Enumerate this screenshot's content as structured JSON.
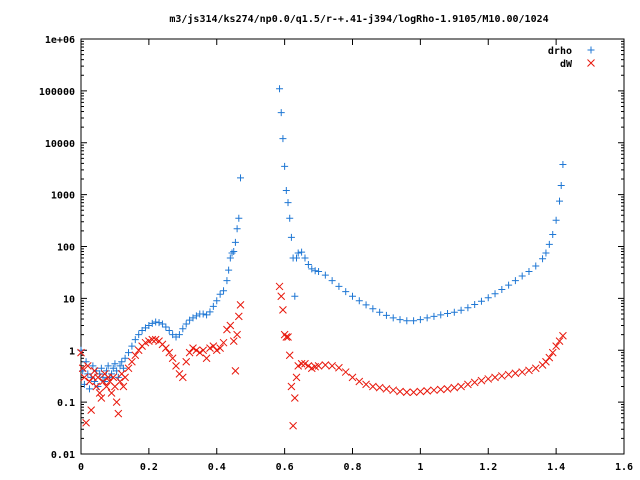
{
  "chart_data": {
    "type": "scatter",
    "title": "m3/js314/ks274/np0.0/q1.5/r-+.41-j394/logRho-1.9105/M10.00/1024",
    "xlabel": "",
    "ylabel": "",
    "xlim": [
      0,
      1.6
    ],
    "ylim": [
      0.01,
      1000000
    ],
    "y_scale": "log",
    "x_ticks": [
      "0",
      "0.2",
      "0.4",
      "0.6",
      "0.8",
      "1",
      "1.2",
      "1.4",
      "1.6"
    ],
    "y_ticks": [
      "0.01",
      "0.1",
      "1",
      "10",
      "100",
      "1000",
      "10000",
      "100000",
      "1e+06"
    ],
    "legend_position": "top-right",
    "grid": false,
    "series": [
      {
        "name": "drho",
        "marker": "plus",
        "color": "#1f77d4",
        "points": [
          [
            0.0,
            1.0
          ],
          [
            0.005,
            0.4
          ],
          [
            0.01,
            0.22
          ],
          [
            0.015,
            0.6
          ],
          [
            0.02,
            0.35
          ],
          [
            0.025,
            0.18
          ],
          [
            0.03,
            0.3
          ],
          [
            0.035,
            0.5
          ],
          [
            0.04,
            0.25
          ],
          [
            0.045,
            0.4
          ],
          [
            0.05,
            0.2
          ],
          [
            0.055,
            0.35
          ],
          [
            0.06,
            0.45
          ],
          [
            0.065,
            0.3
          ],
          [
            0.07,
            0.25
          ],
          [
            0.075,
            0.4
          ],
          [
            0.08,
            0.5
          ],
          [
            0.085,
            0.3
          ],
          [
            0.09,
            0.35
          ],
          [
            0.095,
            0.45
          ],
          [
            0.1,
            0.55
          ],
          [
            0.105,
            0.4
          ],
          [
            0.11,
            0.3
          ],
          [
            0.115,
            0.5
          ],
          [
            0.12,
            0.6
          ],
          [
            0.125,
            0.45
          ],
          [
            0.13,
            0.7
          ],
          [
            0.14,
            0.9
          ],
          [
            0.15,
            1.2
          ],
          [
            0.16,
            1.6
          ],
          [
            0.17,
            2.0
          ],
          [
            0.18,
            2.4
          ],
          [
            0.19,
            2.7
          ],
          [
            0.2,
            3.0
          ],
          [
            0.21,
            3.3
          ],
          [
            0.22,
            3.5
          ],
          [
            0.23,
            3.4
          ],
          [
            0.24,
            3.2
          ],
          [
            0.25,
            2.8
          ],
          [
            0.26,
            2.4
          ],
          [
            0.27,
            2.0
          ],
          [
            0.28,
            1.8
          ],
          [
            0.29,
            2.0
          ],
          [
            0.3,
            2.6
          ],
          [
            0.31,
            3.2
          ],
          [
            0.32,
            3.8
          ],
          [
            0.33,
            4.2
          ],
          [
            0.34,
            4.6
          ],
          [
            0.35,
            5.0
          ],
          [
            0.36,
            5.0
          ],
          [
            0.37,
            4.8
          ],
          [
            0.38,
            5.5
          ],
          [
            0.39,
            7.0
          ],
          [
            0.4,
            9.0
          ],
          [
            0.41,
            12.0
          ],
          [
            0.42,
            14.0
          ],
          [
            0.43,
            22.0
          ],
          [
            0.435,
            35.0
          ],
          [
            0.44,
            60.0
          ],
          [
            0.445,
            75.0
          ],
          [
            0.45,
            80.0
          ],
          [
            0.455,
            120.0
          ],
          [
            0.46,
            220.0
          ],
          [
            0.465,
            350.0
          ],
          [
            0.47,
            2100.0
          ],
          [
            0.585,
            110000.0
          ],
          [
            0.59,
            38000.0
          ],
          [
            0.595,
            12000.0
          ],
          [
            0.6,
            3500.0
          ],
          [
            0.605,
            1200.0
          ],
          [
            0.61,
            700.0
          ],
          [
            0.615,
            350.0
          ],
          [
            0.62,
            150.0
          ],
          [
            0.625,
            60.0
          ],
          [
            0.63,
            11.0
          ],
          [
            0.635,
            60.0
          ],
          [
            0.64,
            75.0
          ],
          [
            0.65,
            78.0
          ],
          [
            0.66,
            60.0
          ],
          [
            0.67,
            45.0
          ],
          [
            0.68,
            37.0
          ],
          [
            0.69,
            34.0
          ],
          [
            0.7,
            33.0
          ],
          [
            0.72,
            28.0
          ],
          [
            0.74,
            22.0
          ],
          [
            0.76,
            17.0
          ],
          [
            0.78,
            13.5
          ],
          [
            0.8,
            11.0
          ],
          [
            0.82,
            9.0
          ],
          [
            0.84,
            7.5
          ],
          [
            0.86,
            6.3
          ],
          [
            0.88,
            5.4
          ],
          [
            0.9,
            4.7
          ],
          [
            0.92,
            4.2
          ],
          [
            0.94,
            3.9
          ],
          [
            0.96,
            3.7
          ],
          [
            0.98,
            3.7
          ],
          [
            1.0,
            3.9
          ],
          [
            1.02,
            4.2
          ],
          [
            1.04,
            4.5
          ],
          [
            1.06,
            4.8
          ],
          [
            1.08,
            5.1
          ],
          [
            1.1,
            5.4
          ],
          [
            1.12,
            5.9
          ],
          [
            1.14,
            6.6
          ],
          [
            1.16,
            7.6
          ],
          [
            1.18,
            8.8
          ],
          [
            1.2,
            10.3
          ],
          [
            1.22,
            12.3
          ],
          [
            1.24,
            14.8
          ],
          [
            1.26,
            18.0
          ],
          [
            1.28,
            22.0
          ],
          [
            1.3,
            27.0
          ],
          [
            1.32,
            33.0
          ],
          [
            1.34,
            42.0
          ],
          [
            1.36,
            58.0
          ],
          [
            1.37,
            75.0
          ],
          [
            1.38,
            110.0
          ],
          [
            1.39,
            170.0
          ],
          [
            1.4,
            320.0
          ],
          [
            1.41,
            750.0
          ],
          [
            1.415,
            1500.0
          ],
          [
            1.42,
            3800.0
          ]
        ]
      },
      {
        "name": "dW",
        "marker": "cross",
        "color": "#e8180c",
        "points": [
          [
            0.0,
            0.9
          ],
          [
            0.005,
            0.45
          ],
          [
            0.01,
            0.3
          ],
          [
            0.015,
            0.04
          ],
          [
            0.02,
            0.5
          ],
          [
            0.025,
            0.25
          ],
          [
            0.03,
            0.07
          ],
          [
            0.035,
            0.3
          ],
          [
            0.04,
            0.4
          ],
          [
            0.045,
            0.2
          ],
          [
            0.05,
            0.3
          ],
          [
            0.055,
            0.15
          ],
          [
            0.06,
            0.12
          ],
          [
            0.065,
            0.25
          ],
          [
            0.07,
            0.35
          ],
          [
            0.075,
            0.2
          ],
          [
            0.08,
            0.3
          ],
          [
            0.085,
            0.25
          ],
          [
            0.09,
            0.15
          ],
          [
            0.095,
            0.3
          ],
          [
            0.1,
            0.2
          ],
          [
            0.105,
            0.1
          ],
          [
            0.11,
            0.06
          ],
          [
            0.115,
            0.25
          ],
          [
            0.12,
            0.35
          ],
          [
            0.125,
            0.2
          ],
          [
            0.13,
            0.3
          ],
          [
            0.14,
            0.45
          ],
          [
            0.15,
            0.6
          ],
          [
            0.16,
            0.8
          ],
          [
            0.17,
            1.0
          ],
          [
            0.18,
            1.2
          ],
          [
            0.19,
            1.4
          ],
          [
            0.2,
            1.5
          ],
          [
            0.21,
            1.6
          ],
          [
            0.22,
            1.6
          ],
          [
            0.23,
            1.5
          ],
          [
            0.24,
            1.3
          ],
          [
            0.25,
            1.1
          ],
          [
            0.26,
            0.9
          ],
          [
            0.27,
            0.7
          ],
          [
            0.28,
            0.5
          ],
          [
            0.29,
            0.35
          ],
          [
            0.3,
            0.3
          ],
          [
            0.31,
            0.6
          ],
          [
            0.32,
            0.9
          ],
          [
            0.33,
            1.1
          ],
          [
            0.34,
            1.0
          ],
          [
            0.35,
            0.9
          ],
          [
            0.36,
            1.0
          ],
          [
            0.37,
            0.7
          ],
          [
            0.38,
            1.1
          ],
          [
            0.39,
            1.2
          ],
          [
            0.4,
            1.0
          ],
          [
            0.41,
            1.1
          ],
          [
            0.42,
            1.4
          ],
          [
            0.43,
            2.5
          ],
          [
            0.44,
            3.0
          ],
          [
            0.45,
            1.5
          ],
          [
            0.455,
            0.4
          ],
          [
            0.46,
            2.0
          ],
          [
            0.465,
            4.5
          ],
          [
            0.47,
            7.5
          ],
          [
            0.585,
            17.0
          ],
          [
            0.59,
            11.0
          ],
          [
            0.595,
            6.0
          ],
          [
            0.6,
            2.0
          ],
          [
            0.605,
            1.8
          ],
          [
            0.61,
            1.8
          ],
          [
            0.615,
            0.8
          ],
          [
            0.62,
            0.2
          ],
          [
            0.625,
            0.035
          ],
          [
            0.63,
            0.12
          ],
          [
            0.635,
            0.3
          ],
          [
            0.64,
            0.5
          ],
          [
            0.65,
            0.55
          ],
          [
            0.66,
            0.55
          ],
          [
            0.67,
            0.5
          ],
          [
            0.68,
            0.45
          ],
          [
            0.69,
            0.48
          ],
          [
            0.7,
            0.5
          ],
          [
            0.72,
            0.52
          ],
          [
            0.74,
            0.5
          ],
          [
            0.76,
            0.46
          ],
          [
            0.78,
            0.38
          ],
          [
            0.8,
            0.3
          ],
          [
            0.82,
            0.25
          ],
          [
            0.84,
            0.22
          ],
          [
            0.86,
            0.2
          ],
          [
            0.88,
            0.19
          ],
          [
            0.9,
            0.18
          ],
          [
            0.92,
            0.17
          ],
          [
            0.94,
            0.16
          ],
          [
            0.96,
            0.155
          ],
          [
            0.98,
            0.155
          ],
          [
            1.0,
            0.16
          ],
          [
            1.02,
            0.165
          ],
          [
            1.04,
            0.17
          ],
          [
            1.06,
            0.175
          ],
          [
            1.08,
            0.18
          ],
          [
            1.1,
            0.19
          ],
          [
            1.12,
            0.2
          ],
          [
            1.14,
            0.22
          ],
          [
            1.16,
            0.24
          ],
          [
            1.18,
            0.26
          ],
          [
            1.2,
            0.28
          ],
          [
            1.22,
            0.3
          ],
          [
            1.24,
            0.32
          ],
          [
            1.26,
            0.34
          ],
          [
            1.28,
            0.36
          ],
          [
            1.3,
            0.38
          ],
          [
            1.32,
            0.41
          ],
          [
            1.34,
            0.45
          ],
          [
            1.36,
            0.52
          ],
          [
            1.37,
            0.6
          ],
          [
            1.38,
            0.72
          ],
          [
            1.39,
            0.9
          ],
          [
            1.4,
            1.2
          ],
          [
            1.41,
            1.5
          ],
          [
            1.42,
            1.9
          ]
        ]
      }
    ]
  }
}
